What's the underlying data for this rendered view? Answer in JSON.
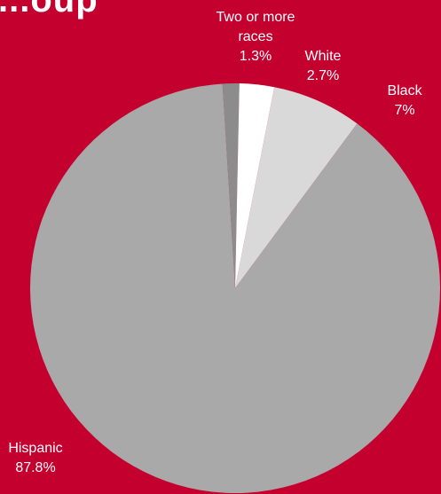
{
  "chart_data": {
    "type": "pie",
    "title": "...oup",
    "categories": [
      "Hispanic",
      "Black",
      "White",
      "Two or more races"
    ],
    "values": [
      87.8,
      7.0,
      2.7,
      1.3
    ],
    "value_labels": [
      "87.8%",
      "7%",
      "2.7%",
      "1.3%"
    ],
    "label_lines": [
      [
        "Hispanic",
        "87.8%"
      ],
      [
        "Black",
        "7%"
      ],
      [
        "White",
        "2.7%"
      ],
      [
        "Two or more",
        "races",
        "1.3%"
      ]
    ],
    "colors": [
      "#a9a9a9",
      "#d9d9d9",
      "#ffffff",
      "#8c8c8c"
    ],
    "legend": "none",
    "grid": false
  },
  "colors": {
    "background": "#c4002f",
    "label_text": "#ffffff"
  }
}
